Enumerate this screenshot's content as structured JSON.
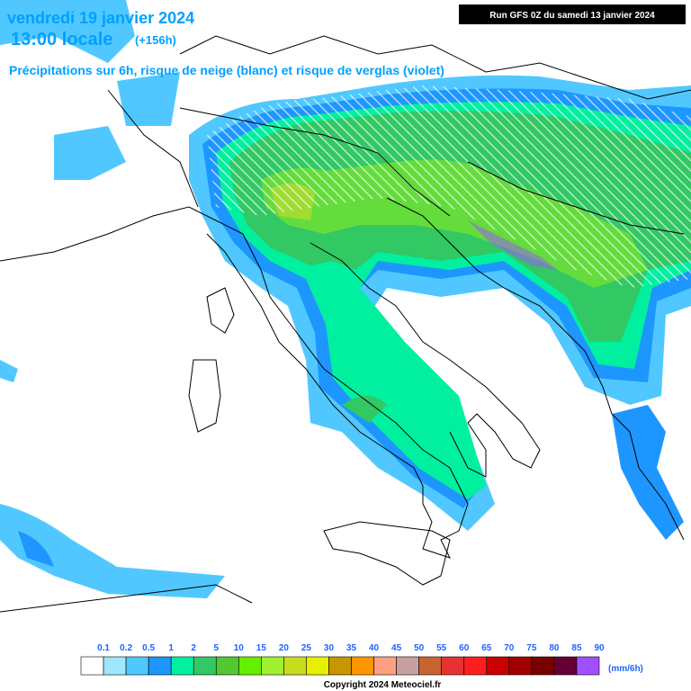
{
  "header": {
    "date": "vendredi 19 janvier 2024",
    "time": "13:00 locale",
    "lead": "(+156h)",
    "subtitle": "Précipitations sur 6h, risque de neige (blanc) et risque de verglas (violet)",
    "run": "Run GFS 0Z du samedi 13 janvier 2024"
  },
  "legend": {
    "unit": "(mm/6h)",
    "labels": [
      "0.1",
      "0.2",
      "0.5",
      "1",
      "2",
      "5",
      "10",
      "15",
      "20",
      "25",
      "30",
      "35",
      "40",
      "45",
      "50",
      "55",
      "60",
      "65",
      "70",
      "75",
      "80",
      "85",
      "90"
    ],
    "colors": [
      "#ffffff",
      "#a0e6ff",
      "#50c8ff",
      "#1e96ff",
      "#00f0a0",
      "#32c864",
      "#50c832",
      "#64f000",
      "#a0f032",
      "#c8dc1e",
      "#e6f000",
      "#c89600",
      "#ff9600",
      "#ffa080",
      "#c8a0a0",
      "#c86432",
      "#e63232",
      "#ff1e1e",
      "#c80000",
      "#a00000",
      "#780000",
      "#640032",
      "#a050ff"
    ]
  },
  "footer": {
    "copyright": "Copyright 2024 Meteociel.fr"
  }
}
